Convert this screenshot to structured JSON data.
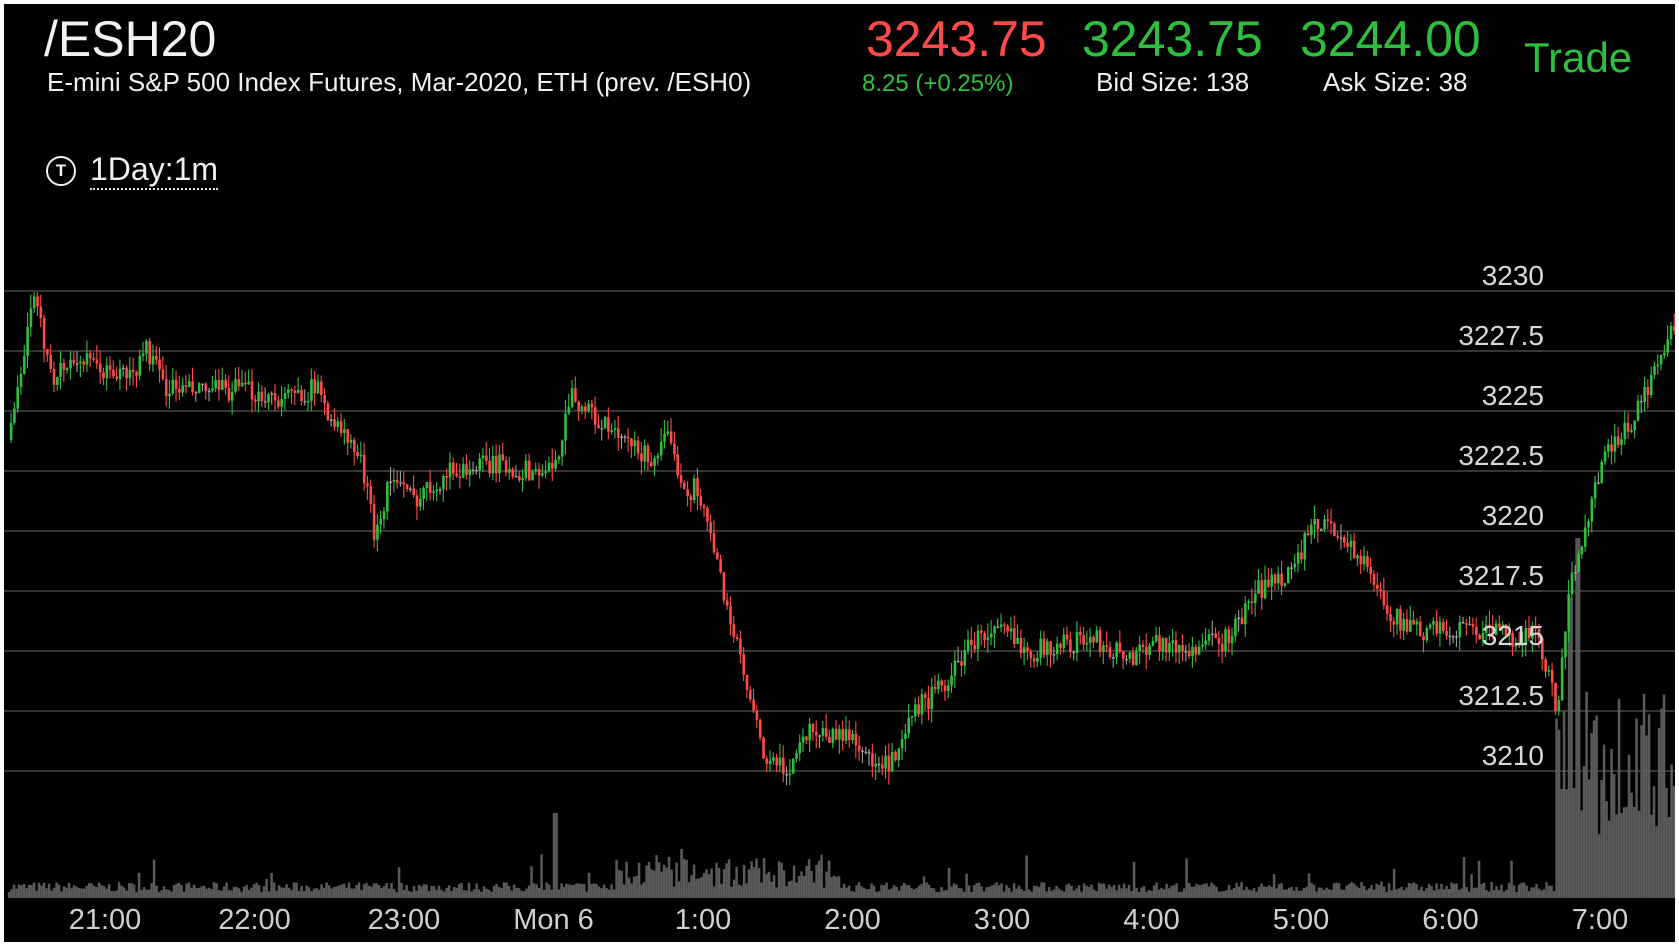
{
  "header": {
    "symbol": "/ESH20",
    "description": "E-mini S&P 500 Index Futures, Mar-2020, ETH (prev. /ESH0)",
    "last_price": "3243.75",
    "net_change": "8.25 (+0.25%)",
    "bid": "3243.75",
    "bid_size": "Bid Size: 138",
    "ask": "3244.00",
    "ask_size": "Ask Size: 38",
    "trade_label": "Trade",
    "timeframe": "1Day:1m",
    "timeframe_icon": "clock-t-icon"
  },
  "colors": {
    "background": "#000000",
    "up": "#2fbf3e",
    "down": "#ff4a4a",
    "neutral": "#a0a0a0",
    "grid": "#555555",
    "volume": "#5a5a5a"
  },
  "chart_data": {
    "type": "candlestick",
    "y_ticks": [
      "3230",
      "3227.5",
      "3225",
      "3222.5",
      "3220",
      "3217.5",
      "3215",
      "3212.5",
      "3210"
    ],
    "y_tick_values": [
      3230,
      3227.5,
      3225,
      3222.5,
      3220,
      3217.5,
      3215,
      3212.5,
      3210
    ],
    "ylim": [
      3208,
      3232
    ],
    "x_ticks": [
      "21:00",
      "22:00",
      "23:00",
      "Mon 6",
      "1:00",
      "2:00",
      "3:00",
      "4:00",
      "5:00",
      "6:00",
      "7:00"
    ],
    "x_tick_hours": [
      0,
      1,
      2,
      3,
      4,
      5,
      6,
      7,
      8,
      9,
      10
    ],
    "time_span_hours": [
      -0.65,
      10.55
    ],
    "price_path": [
      [
        -0.65,
        3223.8
      ],
      [
        -0.55,
        3227.0
      ],
      [
        -0.5,
        3229.8
      ],
      [
        -0.35,
        3226.5
      ],
      [
        -0.2,
        3227.2
      ],
      [
        0.0,
        3226.6
      ],
      [
        0.2,
        3226.5
      ],
      [
        0.25,
        3227.8
      ],
      [
        0.4,
        3226.0
      ],
      [
        0.6,
        3225.8
      ],
      [
        0.9,
        3225.9
      ],
      [
        1.2,
        3225.5
      ],
      [
        1.4,
        3226.0
      ],
      [
        1.55,
        3224.3
      ],
      [
        1.7,
        3223.0
      ],
      [
        1.8,
        3219.8
      ],
      [
        1.9,
        3222.3
      ],
      [
        2.05,
        3221.3
      ],
      [
        2.3,
        3222.5
      ],
      [
        2.6,
        3222.8
      ],
      [
        2.8,
        3222.5
      ],
      [
        3.0,
        3222.5
      ],
      [
        3.1,
        3225.8
      ],
      [
        3.3,
        3224.5
      ],
      [
        3.5,
        3223.5
      ],
      [
        3.65,
        3223.0
      ],
      [
        3.75,
        3223.8
      ],
      [
        3.9,
        3221.5
      ],
      [
        3.95,
        3222.0
      ],
      [
        4.1,
        3218.3
      ],
      [
        4.3,
        3213.0
      ],
      [
        4.4,
        3210.5
      ],
      [
        4.55,
        3210.0
      ],
      [
        4.7,
        3211.8
      ],
      [
        4.85,
        3211.5
      ],
      [
        5.0,
        3211.5
      ],
      [
        5.15,
        3210.0
      ],
      [
        5.3,
        3210.5
      ],
      [
        5.4,
        3212.5
      ],
      [
        5.6,
        3213.5
      ],
      [
        5.8,
        3215.5
      ],
      [
        6.0,
        3215.8
      ],
      [
        6.2,
        3215.0
      ],
      [
        6.4,
        3215.3
      ],
      [
        6.6,
        3215.5
      ],
      [
        6.85,
        3214.7
      ],
      [
        7.0,
        3215.5
      ],
      [
        7.2,
        3215.0
      ],
      [
        7.5,
        3215.5
      ],
      [
        7.7,
        3217.5
      ],
      [
        7.95,
        3218.5
      ],
      [
        8.05,
        3220.0
      ],
      [
        8.2,
        3220.3
      ],
      [
        8.4,
        3218.7
      ],
      [
        8.6,
        3216.5
      ],
      [
        8.75,
        3215.8
      ],
      [
        8.9,
        3215.8
      ],
      [
        9.1,
        3216.0
      ],
      [
        9.25,
        3215.8
      ],
      [
        9.4,
        3215.6
      ],
      [
        9.55,
        3215.7
      ],
      [
        9.65,
        3214.0
      ],
      [
        9.7,
        3212.3
      ],
      [
        9.8,
        3218.0
      ],
      [
        10.0,
        3222.8
      ],
      [
        10.2,
        3224.5
      ],
      [
        10.35,
        3226.5
      ],
      [
        10.45,
        3228.0
      ],
      [
        10.55,
        3229.0
      ]
    ]
  }
}
